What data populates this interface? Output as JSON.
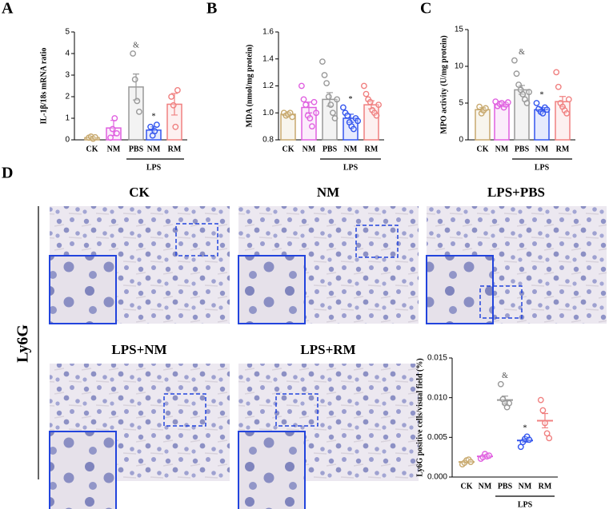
{
  "panels": [
    "A",
    "B",
    "C",
    "D"
  ],
  "images": [
    {
      "label": "CK"
    },
    {
      "label": "NM"
    },
    {
      "label": "LPS+PBS"
    },
    {
      "label": "LPS+NM"
    },
    {
      "label": "LPS+RM"
    }
  ],
  "row_label": "Ly6G",
  "chart_data": [
    {
      "type": "bar",
      "ylabel": "IL-1β/18s mRNA ratio",
      "categories": [
        "CK",
        "NM",
        "PBS",
        "NM",
        "RM"
      ],
      "group_label": "LPS",
      "colors": [
        "#c8a96e",
        "#e060e0",
        "#999999",
        "#3355ee",
        "#f08080"
      ],
      "values": [
        0.1,
        0.55,
        2.45,
        0.45,
        1.65
      ],
      "errors": [
        0.05,
        0.35,
        0.6,
        0.15,
        0.5
      ],
      "points": [
        [
          0.1,
          0.15,
          0.05,
          0.12
        ],
        [
          0.1,
          0.5,
          1.0,
          0.3
        ],
        [
          4.0,
          2.8,
          1.8,
          1.3
        ],
        [
          0.6,
          0.2,
          0.4,
          0.7
        ],
        [
          2.0,
          1.6,
          0.6,
          2.3
        ]
      ],
      "annotations": [
        null,
        null,
        "&",
        "*",
        null
      ],
      "ylim": [
        0,
        5
      ],
      "yticks": [
        0,
        1,
        2,
        3,
        4,
        5
      ]
    },
    {
      "type": "bar",
      "ylabel": "MDA (nmol/mg protein)",
      "categories": [
        "CK",
        "NM",
        "PBS",
        "NM",
        "RM"
      ],
      "group_label": "LPS",
      "colors": [
        "#c8a96e",
        "#e060e0",
        "#999999",
        "#3355ee",
        "#f08080"
      ],
      "values": [
        0.99,
        1.04,
        1.1,
        0.96,
        1.06
      ],
      "errors": [
        0.01,
        0.04,
        0.05,
        0.03,
        0.03
      ],
      "points": [
        [
          1.0,
          0.98,
          0.99,
          1.0,
          0.97
        ],
        [
          1.2,
          1.1,
          1.06,
          0.98,
          0.96,
          0.9,
          1.08,
          1.0
        ],
        [
          1.38,
          1.28,
          1.22,
          1.12,
          1.06,
          1.0,
          0.96,
          1.1
        ],
        [
          1.04,
          1.0,
          0.98,
          0.93,
          0.9,
          0.88,
          0.96,
          0.94
        ],
        [
          1.2,
          1.14,
          1.1,
          1.08,
          1.02,
          1.0,
          0.98,
          1.06
        ]
      ],
      "annotations": [
        null,
        null,
        null,
        "*",
        null
      ],
      "ylim": [
        0.8,
        1.6
      ],
      "yticks": [
        {
          "value": 0.8,
          "label": "0.8"
        },
        {
          "value": 1.0,
          "label": "1.0"
        },
        {
          "value": 1.2,
          "label": "1.2"
        },
        {
          "value": 1.4,
          "label": "1.4"
        },
        {
          "value": 1.6,
          "label": "1.6"
        }
      ]
    },
    {
      "type": "bar",
      "ylabel": "MPO activity (U/mg protein)",
      "categories": [
        "CK",
        "NM",
        "PBS",
        "NM",
        "RM"
      ],
      "group_label": "LPS",
      "colors": [
        "#c8a96e",
        "#e060e0",
        "#999999",
        "#3355ee",
        "#f08080"
      ],
      "values": [
        4.1,
        4.8,
        6.8,
        4.1,
        5.2
      ],
      "errors": [
        0.3,
        0.3,
        0.6,
        0.3,
        0.7
      ],
      "points": [
        [
          4.5,
          3.6,
          4.0,
          4.3
        ],
        [
          5.2,
          4.6,
          4.9,
          5.0,
          4.4,
          4.8,
          5.1
        ],
        [
          10.8,
          9.0,
          7.5,
          6.8,
          6.2,
          5.5,
          5.0,
          6.5
        ],
        [
          5.0,
          4.2,
          3.8,
          3.6,
          4.4,
          4.1
        ],
        [
          9.2,
          7.2,
          5.0,
          4.5,
          4.0,
          3.6,
          5.5
        ]
      ],
      "annotations": [
        null,
        null,
        "&",
        "*",
        null
      ],
      "ylim": [
        0,
        15
      ],
      "yticks": [
        0,
        5,
        10,
        15
      ]
    },
    {
      "type": "dot",
      "ylabel": "Ly6G positive cells/visual field (%)",
      "categories": [
        "CK",
        "NM",
        "PBS",
        "NM",
        "RM"
      ],
      "group_label": "LPS",
      "colors": [
        "#c8a96e",
        "#e060e0",
        "#999999",
        "#3355ee",
        "#f08080"
      ],
      "values": [
        0.0019,
        0.0026,
        0.0097,
        0.0046,
        0.0071
      ],
      "errors": [
        0.0001,
        0.0001,
        0.0005,
        0.0002,
        0.0009
      ],
      "points": [
        [
          0.0016,
          0.0018,
          0.0021,
          0.0022,
          0.0019
        ],
        [
          0.0023,
          0.0025,
          0.0029,
          0.0026,
          0.0027
        ],
        [
          0.0117,
          0.0098,
          0.0093,
          0.0088,
          0.0093
        ],
        [
          0.0038,
          0.0044,
          0.0048,
          0.0051,
          0.0047
        ],
        [
          0.0097,
          0.0084,
          0.0068,
          0.0055,
          0.0049
        ]
      ],
      "annotations": [
        null,
        null,
        "&",
        "*",
        null
      ],
      "ylim": [
        0,
        0.015
      ],
      "yticks": [
        {
          "value": 0,
          "label": "0.000"
        },
        {
          "value": 0.005,
          "label": "0.005"
        },
        {
          "value": 0.01,
          "label": "0.010"
        },
        {
          "value": 0.015,
          "label": "0.015"
        }
      ]
    }
  ]
}
